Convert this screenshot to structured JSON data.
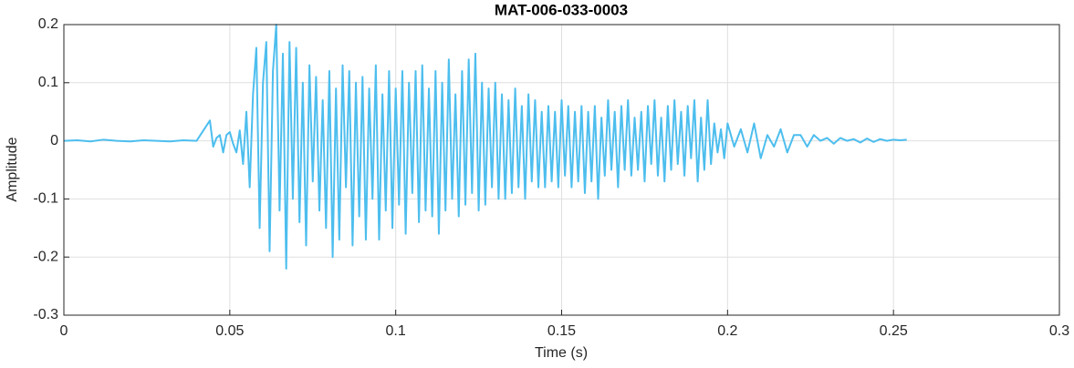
{
  "chart_data": {
    "type": "line",
    "title": "MAT-006-033-0003",
    "x_label": "Time (s)",
    "y_label": "Amplitude",
    "xlim": [
      0,
      0.3
    ],
    "ylim": [
      -0.3,
      0.2
    ],
    "xticks": [
      0,
      0.05,
      0.1,
      0.15,
      0.2,
      0.25,
      0.3
    ],
    "yticks": [
      -0.3,
      -0.2,
      -0.1,
      0,
      0.1,
      0.2
    ],
    "grid": true,
    "x": [
      0,
      0.004,
      0.008,
      0.012,
      0.016,
      0.02,
      0.024,
      0.028,
      0.032,
      0.036,
      0.04,
      0.044,
      0.045,
      0.046,
      0.047,
      0.048,
      0.049,
      0.05,
      0.051,
      0.052,
      0.053,
      0.054,
      0.055,
      0.056,
      0.057,
      0.058,
      0.059,
      0.06,
      0.061,
      0.062,
      0.063,
      0.064,
      0.065,
      0.066,
      0.067,
      0.068,
      0.069,
      0.07,
      0.071,
      0.072,
      0.073,
      0.074,
      0.075,
      0.076,
      0.077,
      0.078,
      0.079,
      0.08,
      0.081,
      0.082,
      0.083,
      0.084,
      0.085,
      0.086,
      0.087,
      0.088,
      0.089,
      0.09,
      0.091,
      0.092,
      0.093,
      0.094,
      0.095,
      0.096,
      0.097,
      0.098,
      0.099,
      0.1,
      0.101,
      0.102,
      0.103,
      0.104,
      0.105,
      0.106,
      0.107,
      0.108,
      0.109,
      0.11,
      0.111,
      0.112,
      0.113,
      0.114,
      0.115,
      0.116,
      0.117,
      0.118,
      0.119,
      0.12,
      0.121,
      0.122,
      0.123,
      0.124,
      0.125,
      0.126,
      0.127,
      0.128,
      0.129,
      0.13,
      0.131,
      0.132,
      0.133,
      0.134,
      0.135,
      0.136,
      0.137,
      0.138,
      0.139,
      0.14,
      0.141,
      0.142,
      0.143,
      0.144,
      0.145,
      0.146,
      0.147,
      0.148,
      0.149,
      0.15,
      0.151,
      0.152,
      0.153,
      0.154,
      0.155,
      0.156,
      0.157,
      0.158,
      0.159,
      0.16,
      0.161,
      0.162,
      0.163,
      0.164,
      0.165,
      0.166,
      0.167,
      0.168,
      0.169,
      0.17,
      0.171,
      0.172,
      0.173,
      0.174,
      0.175,
      0.176,
      0.177,
      0.178,
      0.179,
      0.18,
      0.181,
      0.182,
      0.183,
      0.184,
      0.185,
      0.186,
      0.187,
      0.188,
      0.189,
      0.19,
      0.191,
      0.192,
      0.193,
      0.194,
      0.195,
      0.196,
      0.197,
      0.198,
      0.199,
      0.2,
      0.202,
      0.204,
      0.206,
      0.208,
      0.21,
      0.212,
      0.214,
      0.216,
      0.218,
      0.22,
      0.222,
      0.224,
      0.226,
      0.228,
      0.23,
      0.232,
      0.234,
      0.236,
      0.238,
      0.24,
      0.242,
      0.244,
      0.246,
      0.248,
      0.25,
      0.252,
      0.254
    ],
    "series": [
      {
        "name": "Amplitude",
        "color": "#4dbeee",
        "values": [
          0,
          0.001,
          -0.001,
          0.002,
          0,
          -0.001,
          0.001,
          0,
          -0.001,
          0.001,
          0,
          0.035,
          -0.01,
          0.005,
          0.01,
          -0.02,
          0.01,
          0.015,
          -0.005,
          -0.02,
          0.018,
          -0.04,
          0.05,
          -0.08,
          0.08,
          0.16,
          -0.15,
          0.1,
          0.17,
          -0.19,
          0.12,
          0.2,
          -0.12,
          0.15,
          -0.22,
          0.17,
          -0.1,
          0.16,
          -0.14,
          0.1,
          -0.18,
          0.13,
          -0.07,
          0.11,
          -0.12,
          0.07,
          -0.15,
          0.12,
          -0.2,
          0.09,
          -0.17,
          0.13,
          -0.08,
          0.12,
          -0.18,
          0.1,
          -0.13,
          0.11,
          -0.17,
          0.09,
          -0.1,
          0.13,
          -0.17,
          0.08,
          -0.12,
          0.12,
          -0.15,
          0.09,
          -0.11,
          0.12,
          -0.16,
          0.1,
          -0.09,
          0.12,
          -0.14,
          0.13,
          -0.12,
          0.09,
          -0.13,
          0.12,
          -0.16,
          0.1,
          -0.12,
          0.14,
          -0.1,
          0.08,
          -0.13,
          0.12,
          -0.11,
          0.14,
          -0.09,
          0.15,
          -0.12,
          0.1,
          -0.11,
          0.09,
          -0.08,
          0.1,
          -0.1,
          0.08,
          -0.1,
          0.07,
          -0.09,
          0.09,
          -0.08,
          0.06,
          -0.1,
          0.08,
          -0.07,
          0.07,
          -0.08,
          0.05,
          -0.08,
          0.06,
          -0.07,
          0.05,
          -0.08,
          0.07,
          -0.06,
          0.06,
          -0.08,
          0.05,
          -0.07,
          0.06,
          -0.09,
          0.05,
          -0.07,
          0.06,
          -0.1,
          0.04,
          -0.06,
          0.07,
          -0.05,
          0.05,
          -0.08,
          0.06,
          -0.05,
          0.07,
          -0.06,
          0.04,
          -0.05,
          0.05,
          -0.07,
          0.06,
          -0.04,
          0.07,
          -0.06,
          0.04,
          -0.07,
          0.06,
          -0.05,
          0.07,
          -0.04,
          0.05,
          -0.06,
          0.06,
          -0.03,
          0.07,
          -0.07,
          0.04,
          -0.05,
          0.07,
          -0.04,
          0.03,
          -0.02,
          0.02,
          -0.03,
          0.03,
          -0.01,
          0.02,
          -0.02,
          0.03,
          -0.03,
          0.01,
          -0.01,
          0.02,
          -0.02,
          0.01,
          0.01,
          -0.01,
          0.01,
          0,
          0.005,
          -0.005,
          0.005,
          0,
          0.003,
          -0.003,
          0.004,
          -0.002,
          0.003,
          0,
          0.002,
          0.001,
          0.002
        ]
      }
    ]
  }
}
